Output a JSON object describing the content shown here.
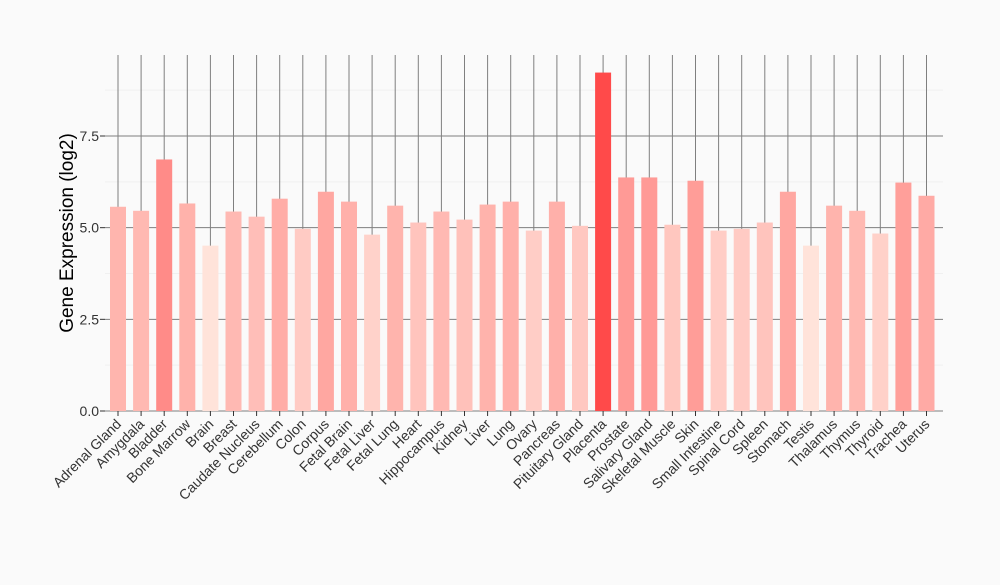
{
  "chart_data": {
    "type": "bar",
    "title": "",
    "xlabel": "",
    "ylabel": "Gene Expression (log2)",
    "ylim": [
      0,
      9.7
    ],
    "yticks": [
      "0.0",
      "2.5",
      "5.0",
      "7.5"
    ],
    "ytick_values": [
      0,
      2.5,
      5.0,
      7.5
    ],
    "grid": true,
    "color_low": "#ffe3da",
    "color_high": "#ff4a4a",
    "categories": [
      "Adrenal Gland",
      "Amygdala",
      "Bladder",
      "Bone Marrow",
      "Brain",
      "Breast",
      "Caudate Nucleus",
      "Cerebellum",
      "Colon",
      "Corpus",
      "Fetal Brain",
      "Fetal Liver",
      "Fetal Lung",
      "Heart",
      "Hippocampus",
      "Kidney",
      "Liver",
      "Lung",
      "Ovary",
      "Pancreas",
      "Pituitary Gland",
      "Placenta",
      "Prostate",
      "Salivary Gland",
      "Skeletal Muscle",
      "Skin",
      "Small Intestine",
      "Spinal Cord",
      "Spleen",
      "Stomach",
      "Testis",
      "Thalamus",
      "Thymus",
      "Thyroid",
      "Trachea",
      "Uterus"
    ],
    "values": [
      5.57,
      5.46,
      6.86,
      5.66,
      4.51,
      5.44,
      5.3,
      5.79,
      4.97,
      5.98,
      5.71,
      4.81,
      5.6,
      5.14,
      5.44,
      5.22,
      5.63,
      5.71,
      4.92,
      5.71,
      5.05,
      9.23,
      6.37,
      6.37,
      5.08,
      6.28,
      4.92,
      4.97,
      5.14,
      5.98,
      4.51,
      5.6,
      5.46,
      4.84,
      6.23,
      5.87
    ]
  }
}
